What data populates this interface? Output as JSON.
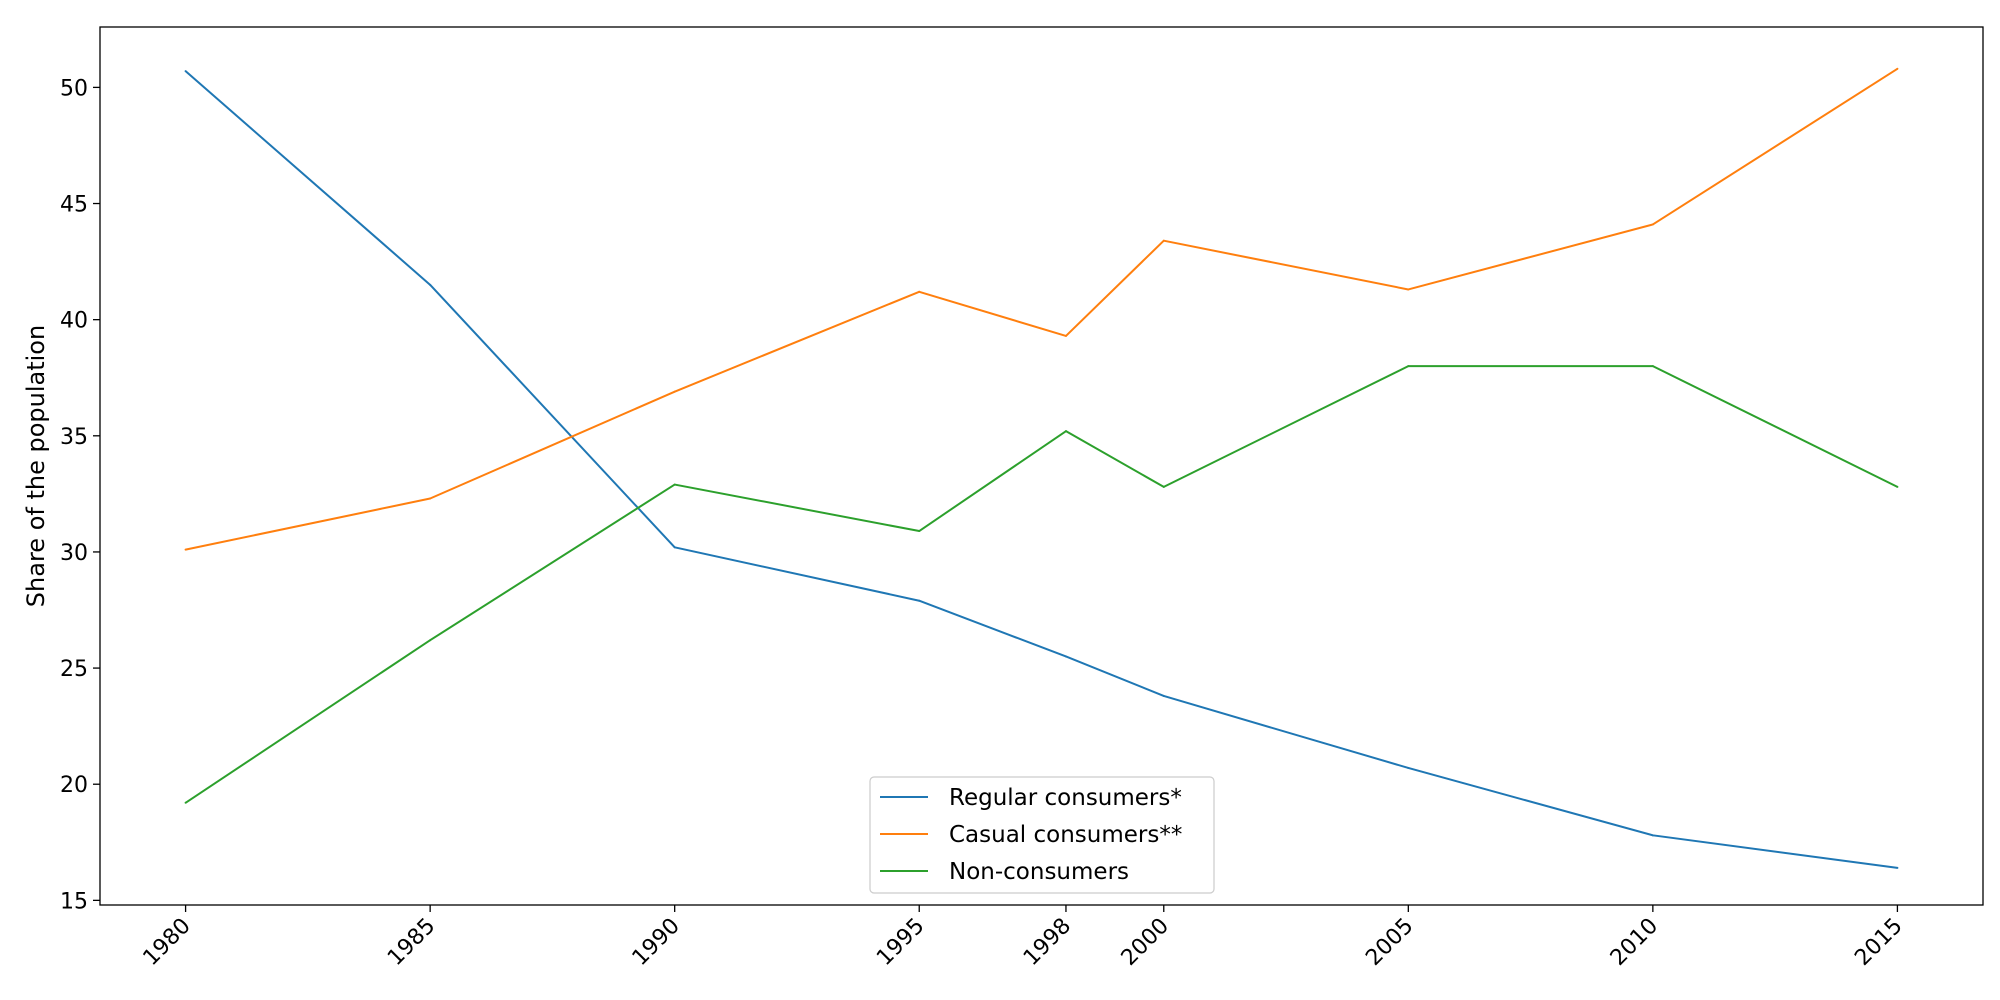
{
  "chart_data": {
    "type": "line",
    "title": "",
    "xlabel": "",
    "ylabel": "Share of the population",
    "x": [
      1980,
      1985,
      1990,
      1995,
      1998,
      2000,
      2005,
      2010,
      2015
    ],
    "x_tick_labels": [
      "1980",
      "1985",
      "1990",
      "1995",
      "1998",
      "2000",
      "2005",
      "2010",
      "2015"
    ],
    "x_tick_rotation_deg": 45,
    "xlim": [
      1978.25,
      2016.75
    ],
    "ylim": [
      14.8,
      52.6
    ],
    "y_ticks": [
      15,
      20,
      25,
      30,
      35,
      40,
      45,
      50
    ],
    "grid": false,
    "legend_placement": "bottom-center",
    "series": [
      {
        "name": "Regular consumers*",
        "color": "#1f77b4",
        "values": [
          50.7,
          41.5,
          30.2,
          27.9,
          25.5,
          23.8,
          20.7,
          17.8,
          16.4
        ]
      },
      {
        "name": "Casual consumers**",
        "color": "#ff7f0e",
        "values": [
          30.1,
          32.3,
          36.9,
          41.2,
          39.3,
          43.4,
          41.3,
          44.1,
          50.8
        ]
      },
      {
        "name": "Non-consumers",
        "color": "#2ca02c",
        "values": [
          19.2,
          26.2,
          32.9,
          30.9,
          35.2,
          32.8,
          38.0,
          38.0,
          32.8
        ]
      }
    ]
  }
}
